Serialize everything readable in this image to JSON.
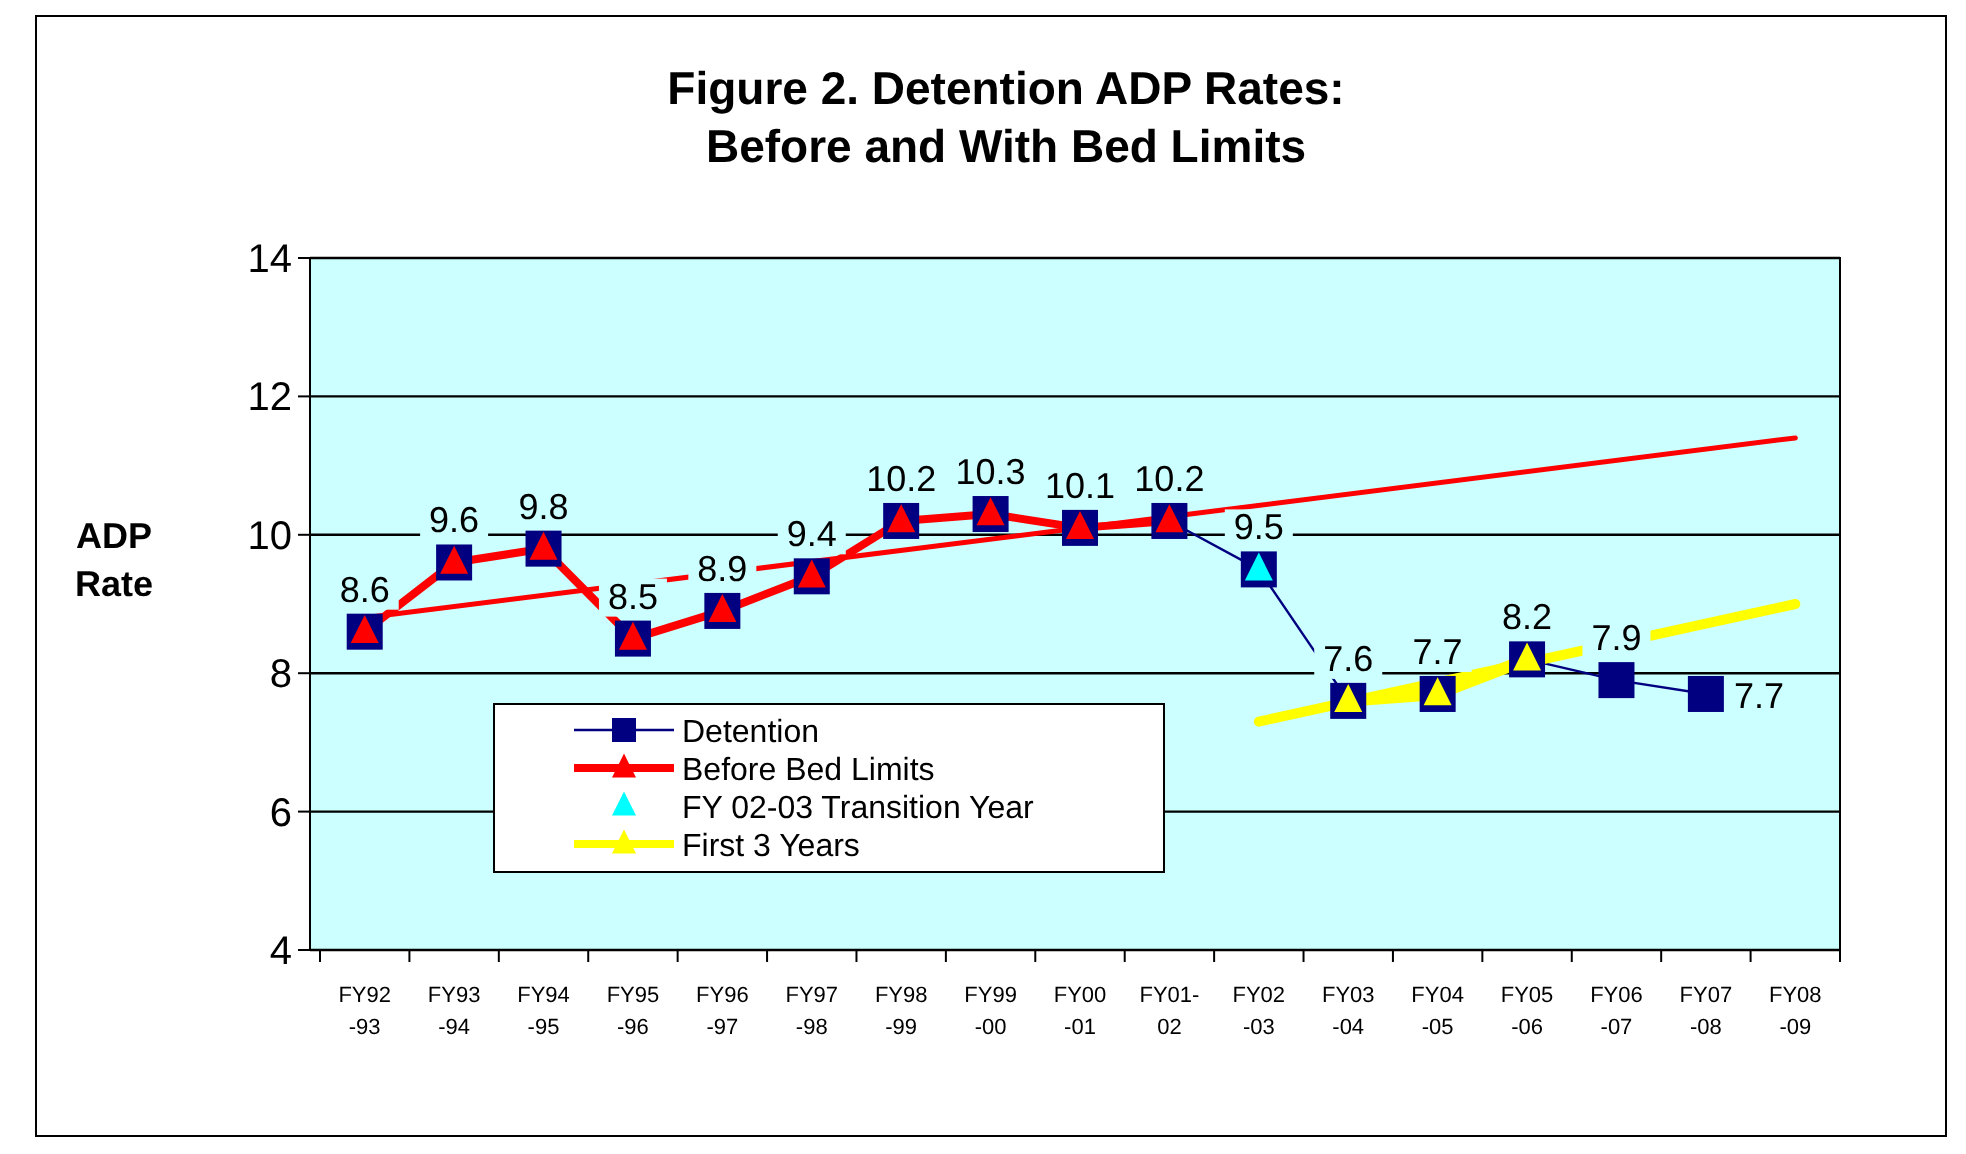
{
  "chart_data": {
    "type": "line",
    "title": "Figure 2. Detention ADP Rates:\nBefore and With Bed Limits",
    "ylabel": "ADP\nRate",
    "categories": [
      "FY92\n-93",
      "FY93\n-94",
      "FY94\n-95",
      "FY95\n-96",
      "FY96\n-97",
      "FY97\n-98",
      "FY98\n-99",
      "FY99\n-00",
      "FY00\n-01",
      "FY01-\n02",
      "FY02\n-03",
      "FY03\n-04",
      "FY04\n-05",
      "FY05\n-06",
      "FY06\n-07",
      "FY07\n-08",
      "FY08\n-09"
    ],
    "series": [
      {
        "name": "Detention",
        "color": "#000080",
        "marker": "square",
        "data_labels": true,
        "values": [
          8.6,
          9.6,
          9.8,
          8.5,
          8.9,
          9.4,
          10.2,
          10.3,
          10.1,
          10.2,
          9.5,
          7.6,
          7.7,
          8.2,
          7.9,
          7.7,
          null
        ]
      },
      {
        "name": "Before Bed Limits",
        "color": "#ff0000",
        "marker": "triangle",
        "values": [
          8.6,
          9.6,
          9.8,
          8.5,
          8.9,
          9.4,
          10.2,
          10.3,
          10.1,
          10.2,
          null,
          null,
          null,
          null,
          null,
          null,
          null
        ]
      },
      {
        "name": "FY 02-03 Transition Year",
        "color": "#00ffff",
        "marker": "triangle",
        "line_style": "none",
        "values": [
          null,
          null,
          null,
          null,
          null,
          null,
          null,
          null,
          null,
          null,
          9.5,
          null,
          null,
          null,
          null,
          null,
          null
        ]
      },
      {
        "name": "First 3 Years",
        "color": "#ffff00",
        "marker": "triangle",
        "values": [
          null,
          null,
          null,
          null,
          null,
          null,
          null,
          null,
          null,
          null,
          null,
          7.6,
          7.7,
          8.2,
          null,
          null,
          null
        ]
      },
      {
        "color": "#ff0000",
        "marker": "none",
        "x": [
          "FY92\n-93",
          "FY08\n-09"
        ],
        "values": [
          8.8,
          11.4
        ]
      },
      {
        "color": "#ffff00",
        "marker": "none",
        "x": [
          "FY02\n-03",
          "FY08\n-09"
        ],
        "values": [
          7.3,
          9.0
        ]
      }
    ],
    "ylim": [
      4,
      14
    ],
    "yticks": [
      4,
      6,
      8,
      10,
      12,
      14
    ],
    "grid": "y",
    "legend": "bottom left"
  }
}
